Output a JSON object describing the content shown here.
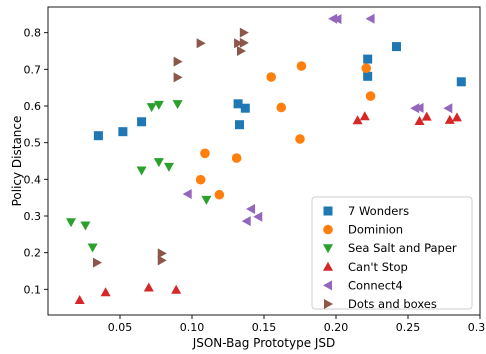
{
  "chart_data": {
    "type": "scatter",
    "xlabel": "JSON-Bag Prototype JSD",
    "ylabel": "Policy Distance",
    "xlim": [
      0.0,
      0.3
    ],
    "ylim": [
      0.03,
      0.87
    ],
    "x_ticks": [
      0.05,
      0.1,
      0.15,
      0.2,
      0.25,
      0.3
    ],
    "x_tick_labels": [
      "0.05",
      "0.10",
      "0.15",
      "0.20",
      "0.25",
      "0.30"
    ],
    "y_ticks": [
      0.1,
      0.2,
      0.3,
      0.4,
      0.5,
      0.6,
      0.7,
      0.8
    ],
    "y_tick_labels": [
      "0.1",
      "0.2",
      "0.3",
      "0.4",
      "0.5",
      "0.6",
      "0.7",
      "0.8"
    ],
    "grid": false,
    "legend_position": "bottom-right",
    "series": [
      {
        "name": "7 Wonders",
        "marker": "square",
        "color": "#1f77b4",
        "points": [
          [
            0.035,
            0.519
          ],
          [
            0.052,
            0.53
          ],
          [
            0.065,
            0.557
          ],
          [
            0.132,
            0.606
          ],
          [
            0.133,
            0.549
          ],
          [
            0.137,
            0.594
          ],
          [
            0.222,
            0.728
          ],
          [
            0.222,
            0.681
          ],
          [
            0.242,
            0.762
          ],
          [
            0.287,
            0.666
          ]
        ]
      },
      {
        "name": "Dominion",
        "marker": "circle",
        "color": "#ff7f0e",
        "points": [
          [
            0.106,
            0.399
          ],
          [
            0.109,
            0.471
          ],
          [
            0.119,
            0.358
          ],
          [
            0.131,
            0.458
          ],
          [
            0.155,
            0.679
          ],
          [
            0.162,
            0.596
          ],
          [
            0.175,
            0.51
          ],
          [
            0.176,
            0.709
          ],
          [
            0.221,
            0.703
          ],
          [
            0.224,
            0.627
          ]
        ]
      },
      {
        "name": "Sea Salt and Paper",
        "marker": "triangle-down",
        "color": "#2ca02c",
        "points": [
          [
            0.016,
            0.283
          ],
          [
            0.026,
            0.274
          ],
          [
            0.031,
            0.214
          ],
          [
            0.065,
            0.424
          ],
          [
            0.072,
            0.597
          ],
          [
            0.077,
            0.603
          ],
          [
            0.077,
            0.447
          ],
          [
            0.084,
            0.434
          ],
          [
            0.09,
            0.605
          ],
          [
            0.11,
            0.344
          ]
        ]
      },
      {
        "name": "Can't Stop",
        "marker": "triangle-up",
        "color": "#d62728",
        "points": [
          [
            0.022,
            0.071
          ],
          [
            0.04,
            0.092
          ],
          [
            0.07,
            0.105
          ],
          [
            0.089,
            0.099
          ],
          [
            0.215,
            0.561
          ],
          [
            0.22,
            0.572
          ],
          [
            0.258,
            0.559
          ],
          [
            0.263,
            0.571
          ],
          [
            0.279,
            0.562
          ],
          [
            0.284,
            0.569
          ]
        ]
      },
      {
        "name": "Connect4",
        "marker": "triangle-left",
        "color": "#9467bd",
        "points": [
          [
            0.097,
            0.36
          ],
          [
            0.138,
            0.286
          ],
          [
            0.141,
            0.319
          ],
          [
            0.146,
            0.298
          ],
          [
            0.198,
            0.838
          ],
          [
            0.201,
            0.837
          ],
          [
            0.224,
            0.838
          ],
          [
            0.255,
            0.594
          ],
          [
            0.258,
            0.595
          ],
          [
            0.278,
            0.594
          ]
        ]
      },
      {
        "name": "Dots and boxes",
        "marker": "triangle-right",
        "color": "#8c564b",
        "points": [
          [
            0.034,
            0.173
          ],
          [
            0.079,
            0.198
          ],
          [
            0.079,
            0.179
          ],
          [
            0.09,
            0.721
          ],
          [
            0.09,
            0.678
          ],
          [
            0.106,
            0.771
          ],
          [
            0.132,
            0.771
          ],
          [
            0.134,
            0.75
          ],
          [
            0.136,
            0.8
          ],
          [
            0.136,
            0.772
          ]
        ]
      }
    ]
  }
}
